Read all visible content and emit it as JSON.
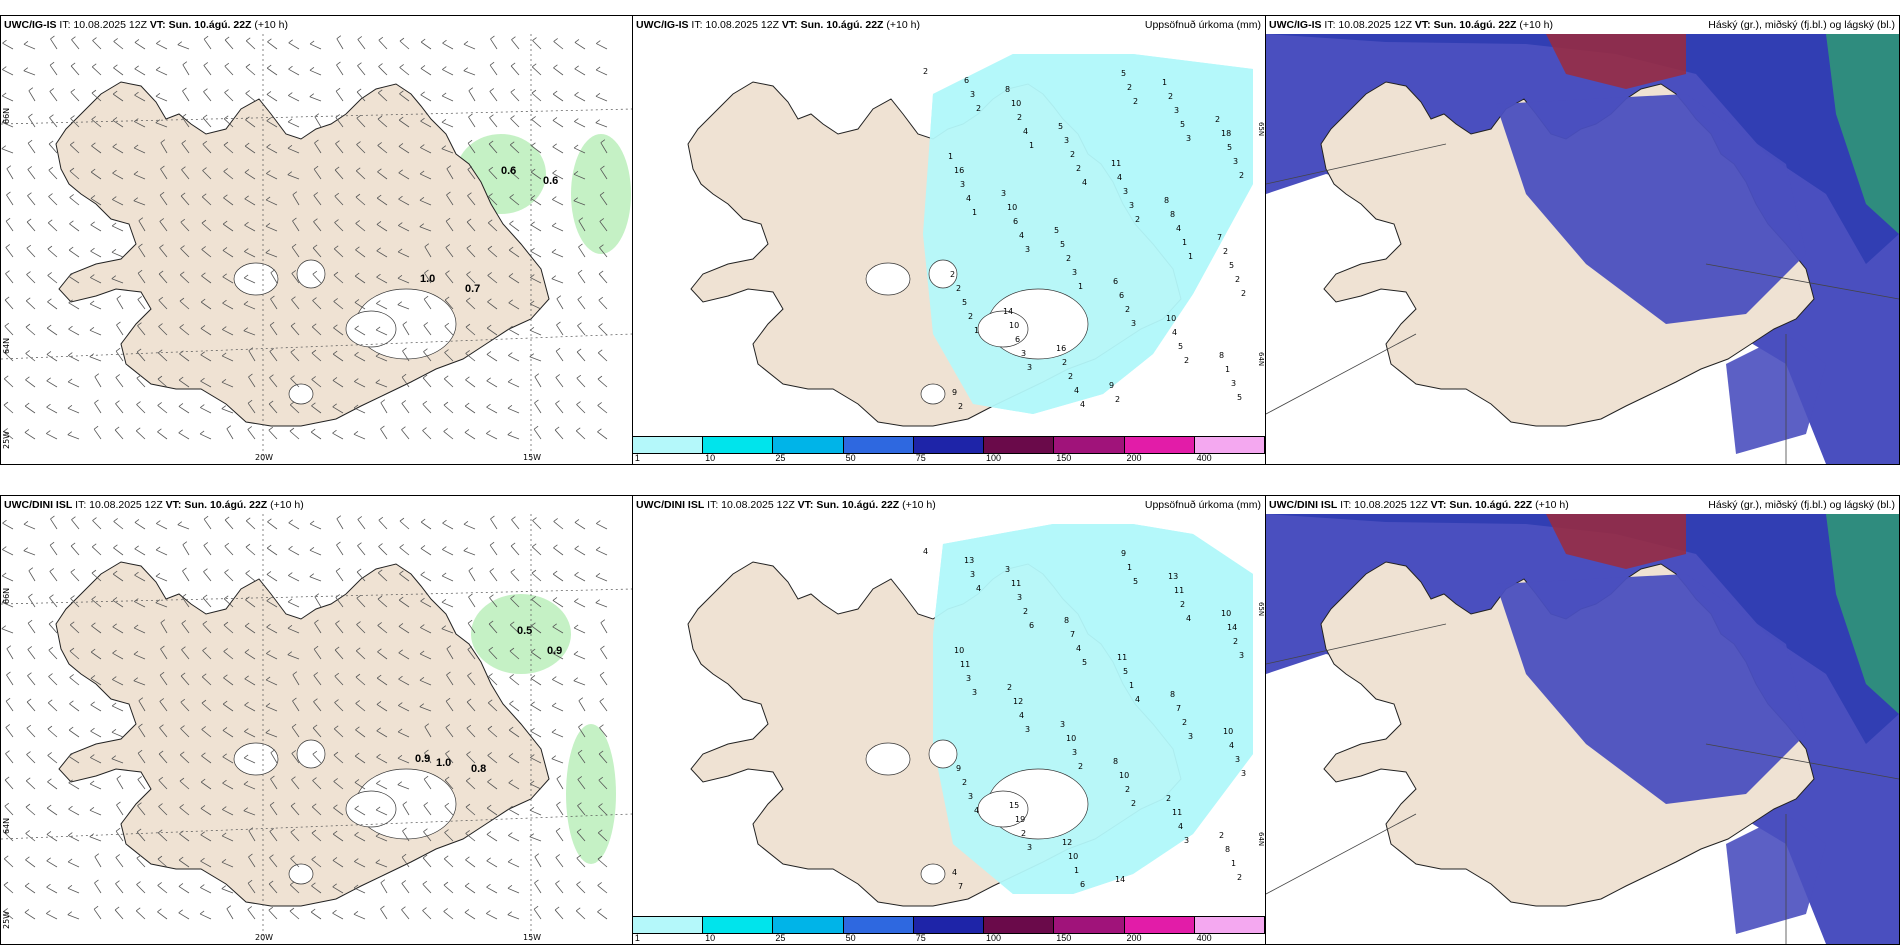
{
  "panels": [
    {
      "model": "UWC/IG-IS",
      "it": "IT: 10.08.2025 12Z",
      "vt_label": "VT:",
      "vt": "Sun. 10.ágú. 22Z",
      "lead": "(+10 h)",
      "right": "",
      "labels": [
        "0.6",
        "0.6",
        "1.0",
        "0.7"
      ],
      "lon": [
        "20W",
        "15W"
      ],
      "lat": [
        "66N",
        "64N",
        "25W"
      ]
    },
    {
      "model": "UWC/IG-IS",
      "it": "IT: 10.08.2025 12Z",
      "vt_label": "VT:",
      "vt": "Sun. 10.ágú. 22Z",
      "lead": "(+10 h)",
      "right": "Uppsöfnuð úrkoma (mm)",
      "lat": [
        "65N",
        "64N"
      ]
    },
    {
      "model": "UWC/IG-IS",
      "it": "IT: 10.08.2025 12Z",
      "vt_label": "VT:",
      "vt": "Sun. 10.ágú. 22Z",
      "lead": "(+10 h)",
      "right": "Háský (gr.), miðský (fj.bl.) og lágský (bl.)"
    },
    {
      "model": "UWC/DINI ISL",
      "it": "IT: 10.08.2025 12Z",
      "vt_label": "VT:",
      "vt": "Sun. 10.ágú. 22Z",
      "lead": "(+10 h)",
      "right": "",
      "labels": [
        "0.5",
        "0.9",
        "0.9",
        "1.0",
        "0.8"
      ],
      "lon": [
        "20W",
        "15W"
      ],
      "lat": [
        "66N",
        "64N",
        "25W"
      ]
    },
    {
      "model": "UWC/DINI ISL",
      "it": "IT: 10.08.2025 12Z",
      "vt_label": "VT:",
      "vt": "Sun. 10.ágú. 22Z",
      "lead": "(+10 h)",
      "right": "Uppsöfnuð úrkoma (mm)",
      "lat": [
        "65N",
        "64N"
      ]
    },
    {
      "model": "UWC/DINI ISL",
      "it": "IT: 10.08.2025 12Z",
      "vt_label": "VT:",
      "vt": "Sun. 10.ágú. 22Z",
      "lead": "(+10 h)",
      "right": "Háský (gr.), miðský (fj.bl.) og lágský (bl.)"
    }
  ],
  "colorbar": {
    "colors": [
      "#b4f8fa",
      "#00e4ec",
      "#00b4e8",
      "#2e68e0",
      "#1e24a8",
      "#6a0a4a",
      "#a0137a",
      "#e21ca8",
      "#f4a8f0"
    ],
    "labels": [
      "1",
      "10",
      "25",
      "50",
      "75",
      "100",
      "150",
      "200",
      "400"
    ]
  },
  "precip_top": [
    "2",
    "2",
    "1",
    "4",
    "2",
    "1",
    "2",
    "1",
    "3",
    "4",
    "2",
    "3",
    "2",
    "1",
    "3",
    "1",
    "3",
    "2",
    "5",
    "3",
    "4",
    "2",
    "3",
    "1",
    "2",
    "2",
    "3",
    "4",
    "2",
    "5",
    "3",
    "4",
    "4",
    "3",
    "2",
    "5",
    "3",
    "6",
    "2",
    "2",
    "3",
    "4",
    "5",
    "5",
    "6",
    "2",
    "5",
    "3",
    "5",
    "3",
    "6",
    "2",
    "6",
    "4",
    "1",
    "2",
    "10",
    "3",
    "4",
    "8",
    "2",
    "2",
    "10",
    "2",
    "2",
    "2",
    "18",
    "16",
    "10",
    "5",
    "6",
    "10",
    "8",
    "9",
    "8",
    "5",
    "11",
    "8",
    "7",
    "2",
    "14",
    "16",
    "9",
    "1",
    "2",
    "1",
    "3",
    "5"
  ],
  "precip_bottom": [
    "4",
    "4",
    "6",
    "5",
    "4",
    "3",
    "3",
    "4",
    "3",
    "6",
    "5",
    "4",
    "3",
    "3",
    "3",
    "2",
    "2",
    "3",
    "2",
    "3",
    "2",
    "4",
    "1",
    "2",
    "3",
    "3",
    "2",
    "1",
    "1",
    "2",
    "2",
    "3",
    "4",
    "3",
    "2",
    "4",
    "1",
    "13",
    "3",
    "7",
    "5",
    "7",
    "4",
    "2",
    "19",
    "10",
    "9",
    "11",
    "14",
    "11",
    "12",
    "10",
    "10",
    "11",
    "8",
    "7",
    "11",
    "8",
    "11",
    "8",
    "10",
    "9",
    "15",
    "12",
    "14",
    "13",
    "10",
    "10",
    "2",
    "3",
    "8",
    "2",
    "2",
    "4",
    "3"
  ],
  "accent": {
    "land": "#efe2d3",
    "green": "#bff0bf",
    "highcloud": "#4a4fbf",
    "lowcloud": "#2a3ab0"
  }
}
